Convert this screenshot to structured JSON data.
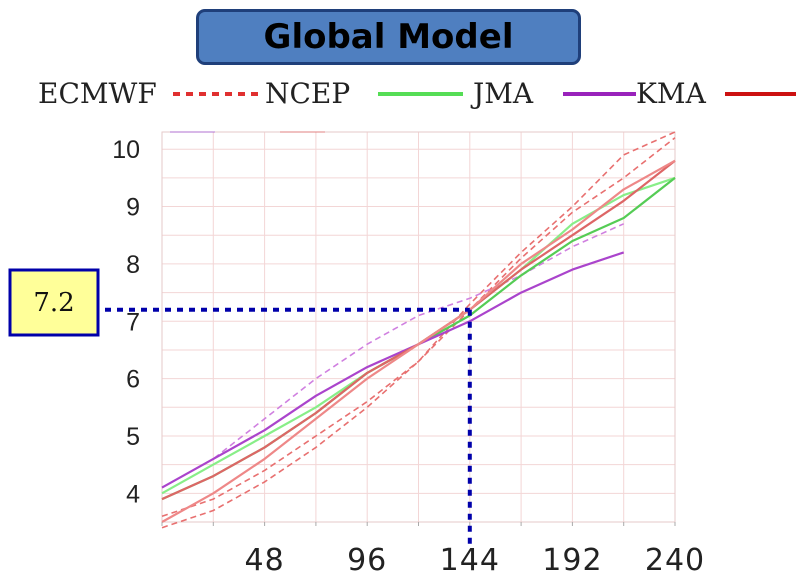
{
  "title": "Global Model",
  "chart_data": {
    "type": "line",
    "ylim": [
      3.5,
      10.3
    ],
    "xlim": [
      0,
      240
    ],
    "x_ticks": [
      48,
      96,
      144,
      192,
      240
    ],
    "x_tick_labels": [
      "48",
      "96",
      "144",
      "192",
      "240"
    ],
    "y_ticks": [
      4,
      5,
      6,
      7,
      8,
      9,
      10
    ],
    "y_tick_labels": [
      "4",
      "5",
      "6",
      "7",
      "8",
      "9",
      "10"
    ],
    "grid": true,
    "legend_position": "top",
    "legend": [
      {
        "name": "ECMWF",
        "color": "#e03030",
        "style": "dashed"
      },
      {
        "name": "NCEP",
        "color": "#55dd55",
        "style": "solid"
      },
      {
        "name": "JMA",
        "color": "#9922bb",
        "style": "solid"
      },
      {
        "name": "KMA",
        "color": "#cc1111",
        "style": "solid"
      }
    ],
    "series": [
      {
        "name": "ECMWF",
        "color": "#e87070",
        "dash": true,
        "x": [
          0,
          24,
          48,
          72,
          96,
          120,
          144,
          168,
          192,
          216,
          240
        ],
        "y": [
          3.4,
          3.7,
          4.2,
          4.8,
          5.5,
          6.3,
          7.3,
          8.2,
          9.0,
          9.9,
          10.3
        ]
      },
      {
        "name": "ECMWF",
        "color": "#e87070",
        "dash": true,
        "x": [
          0,
          24,
          48,
          72,
          96,
          120,
          144,
          168,
          192,
          216,
          240
        ],
        "y": [
          3.6,
          3.9,
          4.4,
          5.0,
          5.6,
          6.3,
          7.2,
          8.1,
          8.9,
          9.5,
          10.2
        ]
      },
      {
        "name": "ECMWF",
        "color": "#d080e0",
        "dash": true,
        "x": [
          0,
          24,
          48,
          72,
          96,
          120,
          144,
          168,
          192,
          216
        ],
        "y": [
          4.1,
          4.6,
          5.3,
          6.0,
          6.6,
          7.1,
          7.4,
          7.8,
          8.3,
          8.7
        ]
      },
      {
        "name": "NCEP",
        "color": "#88ee88",
        "dash": false,
        "x": [
          0,
          24,
          48,
          72,
          96,
          120,
          144,
          168,
          192,
          216,
          240
        ],
        "y": [
          4.0,
          4.5,
          5.0,
          5.5,
          6.1,
          6.6,
          7.2,
          7.9,
          8.7,
          9.2,
          9.5
        ]
      },
      {
        "name": "NCEP",
        "color": "#55cc55",
        "dash": false,
        "x": [
          0,
          24,
          48,
          72,
          96,
          120,
          144,
          168,
          192,
          216,
          240
        ],
        "y": [
          3.9,
          4.3,
          4.8,
          5.4,
          6.1,
          6.6,
          7.1,
          7.8,
          8.4,
          8.8,
          9.5
        ]
      },
      {
        "name": "JMA",
        "color": "#aa44cc",
        "dash": false,
        "x": [
          0,
          24,
          48,
          72,
          96,
          120,
          144,
          168,
          192,
          216
        ],
        "y": [
          4.1,
          4.6,
          5.1,
          5.7,
          6.2,
          6.6,
          7.0,
          7.5,
          7.9,
          8.2
        ]
      },
      {
        "name": "KMA",
        "color": "#dd6666",
        "dash": false,
        "x": [
          0,
          24,
          48,
          72,
          96,
          120,
          144,
          168,
          192,
          216,
          240
        ],
        "y": [
          3.9,
          4.3,
          4.8,
          5.4,
          6.1,
          6.6,
          7.2,
          7.9,
          8.5,
          9.1,
          9.8
        ]
      },
      {
        "name": "KMA",
        "color": "#ee8888",
        "dash": false,
        "x": [
          0,
          24,
          48,
          72,
          96,
          120,
          144,
          168,
          192,
          216,
          240
        ],
        "y": [
          3.5,
          4.0,
          4.6,
          5.3,
          6.0,
          6.6,
          7.2,
          8.0,
          8.6,
          9.3,
          9.8
        ]
      }
    ],
    "annotation": {
      "value": "7.2",
      "y": 7.2,
      "x": 144,
      "color": "#0000aa",
      "box_fill": "#ffff99"
    }
  }
}
